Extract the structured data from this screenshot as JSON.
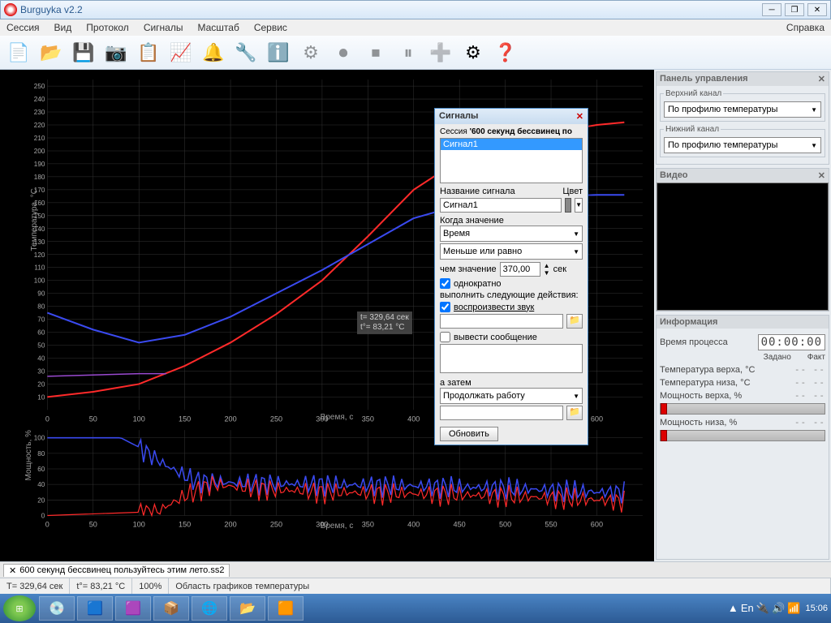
{
  "window": {
    "title": "Burguyka v2.2"
  },
  "menu": {
    "items": [
      "Сессия",
      "Вид",
      "Протокол",
      "Сигналы",
      "Масштаб",
      "Сервис"
    ],
    "help": "Справка"
  },
  "toolbar_icons": [
    "📄",
    "📂",
    "💾",
    "📷",
    "📋",
    "📈",
    "🔔",
    "🔧",
    "ℹ️",
    "⚙",
    "⏺",
    "⏹",
    "⏸",
    "➕",
    "⚙",
    "❓"
  ],
  "toolbar_disabled": [
    9,
    10,
    11,
    12,
    13
  ],
  "chart_top": {
    "type": "line",
    "background": "#000000",
    "grid_color": "#333333",
    "axis_color": "#aaaaaa",
    "xlabel": "Время, с",
    "ylabel": "Температура, °C",
    "xlim": [
      0,
      650
    ],
    "ylim": [
      0,
      255
    ],
    "yticks": [
      10,
      20,
      30,
      40,
      50,
      60,
      70,
      80,
      90,
      100,
      110,
      120,
      130,
      140,
      150,
      160,
      170,
      180,
      190,
      200,
      210,
      220,
      230,
      240,
      250
    ],
    "xticks": [
      0,
      50,
      100,
      150,
      200,
      250,
      300,
      350,
      400,
      450,
      500,
      550,
      600
    ],
    "series": [
      {
        "name": "red",
        "color": "#ff2a2a",
        "width": 2,
        "points": [
          [
            0,
            10
          ],
          [
            50,
            14
          ],
          [
            100,
            20
          ],
          [
            150,
            34
          ],
          [
            200,
            52
          ],
          [
            250,
            74
          ],
          [
            300,
            100
          ],
          [
            350,
            134
          ],
          [
            400,
            170
          ],
          [
            450,
            193
          ],
          [
            500,
            206
          ],
          [
            550,
            214
          ],
          [
            600,
            220
          ],
          [
            630,
            222
          ]
        ]
      },
      {
        "name": "blue",
        "color": "#3a4af0",
        "width": 2,
        "points": [
          [
            0,
            75
          ],
          [
            50,
            62
          ],
          [
            100,
            52
          ],
          [
            150,
            58
          ],
          [
            200,
            72
          ],
          [
            250,
            90
          ],
          [
            300,
            108
          ],
          [
            350,
            128
          ],
          [
            400,
            148
          ],
          [
            450,
            158
          ],
          [
            500,
            163
          ],
          [
            550,
            165
          ],
          [
            600,
            166
          ],
          [
            630,
            166
          ]
        ]
      },
      {
        "name": "purple",
        "color": "#9a4ad0",
        "width": 1.5,
        "points": [
          [
            0,
            26
          ],
          [
            50,
            27
          ],
          [
            100,
            28
          ],
          [
            130,
            28
          ]
        ]
      }
    ],
    "tooltip": {
      "t": "329,64",
      "temp": "83,21"
    }
  },
  "chart_bot": {
    "type": "line",
    "background": "#000000",
    "grid_color": "#333333",
    "axis_color": "#aaaaaa",
    "xlabel": "Время, с",
    "ylabel": "Мощность, %",
    "xlim": [
      0,
      650
    ],
    "ylim": [
      0,
      110
    ],
    "yticks": [
      0,
      20,
      40,
      60,
      80,
      100
    ],
    "xticks": [
      0,
      50,
      100,
      150,
      200,
      250,
      300,
      350,
      400,
      450,
      500,
      550,
      600
    ],
    "series": [
      {
        "name": "blue",
        "color": "#3a4af0",
        "width": 1.5,
        "noisy": true,
        "base": [
          [
            0,
            100
          ],
          [
            80,
            100
          ],
          [
            100,
            88
          ],
          [
            130,
            64
          ],
          [
            160,
            45
          ],
          [
            200,
            42
          ],
          [
            300,
            40
          ],
          [
            400,
            38
          ],
          [
            500,
            35
          ],
          [
            600,
            30
          ],
          [
            630,
            30
          ]
        ]
      },
      {
        "name": "red",
        "color": "#ff2a2a",
        "width": 1.2,
        "noisy": true,
        "base": [
          [
            0,
            0
          ],
          [
            120,
            5
          ],
          [
            150,
            25
          ],
          [
            180,
            40
          ],
          [
            220,
            35
          ],
          [
            300,
            30
          ],
          [
            400,
            28
          ],
          [
            500,
            25
          ],
          [
            600,
            20
          ],
          [
            630,
            18
          ]
        ]
      }
    ]
  },
  "control_panel": {
    "title": "Панель управления",
    "upper": {
      "label": "Верхний канал",
      "value": "По профилю температуры"
    },
    "lower": {
      "label": "Нижний канал",
      "value": "По профилю температуры"
    }
  },
  "video": {
    "title": "Видео"
  },
  "info": {
    "title": "Информация",
    "time_label": "Время процесса",
    "time_value": "00:00:00",
    "col_set": "Задано",
    "col_fact": "Факт",
    "rows": [
      {
        "label": "Температура верха, °C"
      },
      {
        "label": "Температура низа, °C"
      },
      {
        "label": "Мощность верха, %"
      },
      {
        "label": "Мощность низа, %"
      }
    ]
  },
  "dialog": {
    "title": "Сигналы",
    "session_prefix": "Сессия ",
    "session_name": "'600 секунд бессвинец по",
    "list_item": "Сигнал1",
    "name_label": "Название сигнала",
    "color_label": "Цвет",
    "name_value": "Сигнал1",
    "when_label": "Когда значение",
    "param": "Время",
    "op": "Меньше или равно",
    "than_label": "чем значение",
    "than_value": "370,00",
    "unit": "сек",
    "once": "однократно",
    "actions_label": "выполнить следующие действия:",
    "play_sound": "воспроизвести звук",
    "show_msg": "вывести сообщение",
    "then_label": "а затем",
    "then_value": "Продолжать работу",
    "update": "Обновить"
  },
  "tabs": {
    "name": "600 секунд бессвинец пользуйтесь этим лето.ss2"
  },
  "status": {
    "t": "T= 329,64 сек",
    "temp": "t°= 83,21 °C",
    "zoom": "100%",
    "area": "Область графиков температуры"
  },
  "taskbar": {
    "icons": [
      "💿",
      "🟦",
      "🟪",
      "📦",
      "🌐",
      "📂",
      "🟧"
    ],
    "tray": [
      "▲",
      "En",
      "🔌",
      "🔊",
      "📶"
    ],
    "clock": "15:06"
  }
}
